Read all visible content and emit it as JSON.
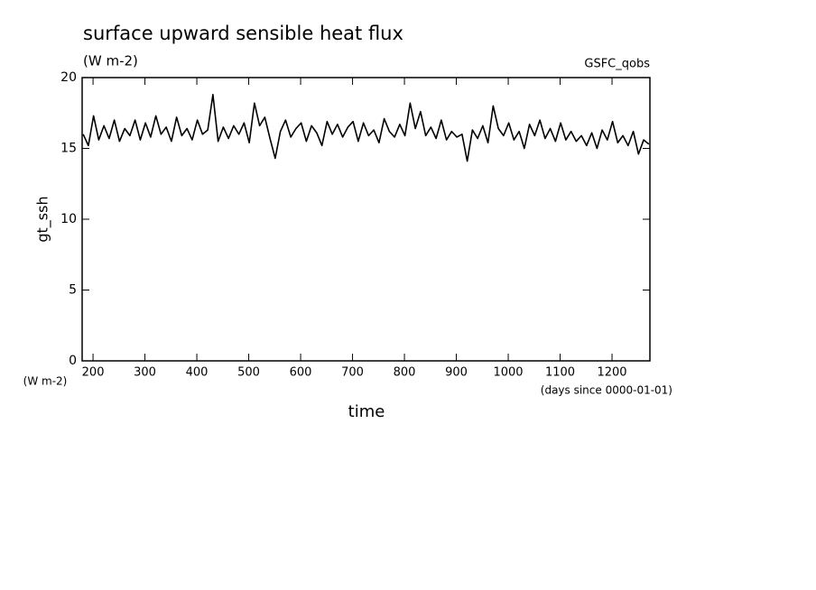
{
  "chart_data": {
    "type": "line",
    "title": "surface upward sensible heat flux",
    "subtitle": "(W m-2)",
    "source_label": "GSFC_qobs",
    "y_label": "gt_ssh",
    "y_unit": "(W m-2)",
    "x_label": "time",
    "x_unit": "(days since 0000-01-01)",
    "xlim": [
      179,
      1273
    ],
    "ylim": [
      0,
      20
    ],
    "xticks": [
      200,
      300,
      400,
      500,
      600,
      700,
      800,
      900,
      1000,
      1100,
      1200
    ],
    "yticks": [
      0,
      5,
      10,
      15,
      20
    ],
    "grid": false,
    "x": [
      181,
      191,
      201,
      211,
      221,
      231,
      241,
      251,
      261,
      271,
      281,
      291,
      301,
      311,
      321,
      331,
      341,
      351,
      361,
      371,
      381,
      391,
      401,
      411,
      421,
      431,
      441,
      451,
      461,
      471,
      481,
      491,
      501,
      511,
      521,
      531,
      541,
      551,
      561,
      571,
      581,
      591,
      601,
      611,
      621,
      631,
      641,
      651,
      661,
      671,
      681,
      691,
      701,
      711,
      721,
      731,
      741,
      751,
      761,
      771,
      781,
      791,
      801,
      811,
      821,
      831,
      841,
      851,
      861,
      871,
      881,
      891,
      901,
      911,
      921,
      931,
      941,
      951,
      961,
      971,
      981,
      991,
      1001,
      1011,
      1021,
      1031,
      1041,
      1051,
      1061,
      1071,
      1081,
      1091,
      1101,
      1111,
      1121,
      1131,
      1141,
      1151,
      1161,
      1171,
      1181,
      1191,
      1201,
      1211,
      1221,
      1231,
      1241,
      1251,
      1261,
      1271
    ],
    "series": [
      {
        "color": "#000000",
        "values": [
          16.0,
          15.2,
          17.3,
          15.6,
          16.6,
          15.7,
          17.0,
          15.5,
          16.4,
          15.9,
          17.0,
          15.6,
          16.8,
          15.8,
          17.3,
          16.0,
          16.5,
          15.5,
          17.2,
          15.9,
          16.4,
          15.6,
          17.0,
          16.0,
          16.3,
          18.8,
          15.5,
          16.5,
          15.7,
          16.6,
          16.0,
          16.8,
          15.4,
          18.2,
          16.6,
          17.2,
          15.7,
          14.3,
          16.2,
          17.0,
          15.8,
          16.4,
          16.8,
          15.5,
          16.6,
          16.1,
          15.2,
          16.9,
          16.0,
          16.7,
          15.8,
          16.5,
          16.9,
          15.5,
          16.8,
          15.9,
          16.3,
          15.4,
          17.1,
          16.2,
          15.8,
          16.7,
          15.9,
          18.2,
          16.4,
          17.6,
          15.9,
          16.5,
          15.7,
          17.0,
          15.6,
          16.2,
          15.8,
          16.0,
          14.1,
          16.3,
          15.7,
          16.6,
          15.4,
          18.0,
          16.4,
          15.9,
          16.8,
          15.6,
          16.2,
          15.0,
          16.7,
          15.9,
          17.0,
          15.7,
          16.4,
          15.5,
          16.8,
          15.6,
          16.2,
          15.5,
          15.9,
          15.2,
          16.1,
          15.0,
          16.3,
          15.6,
          16.9,
          15.4,
          15.9,
          15.2,
          16.2,
          14.6,
          15.6,
          15.3
        ]
      }
    ]
  }
}
